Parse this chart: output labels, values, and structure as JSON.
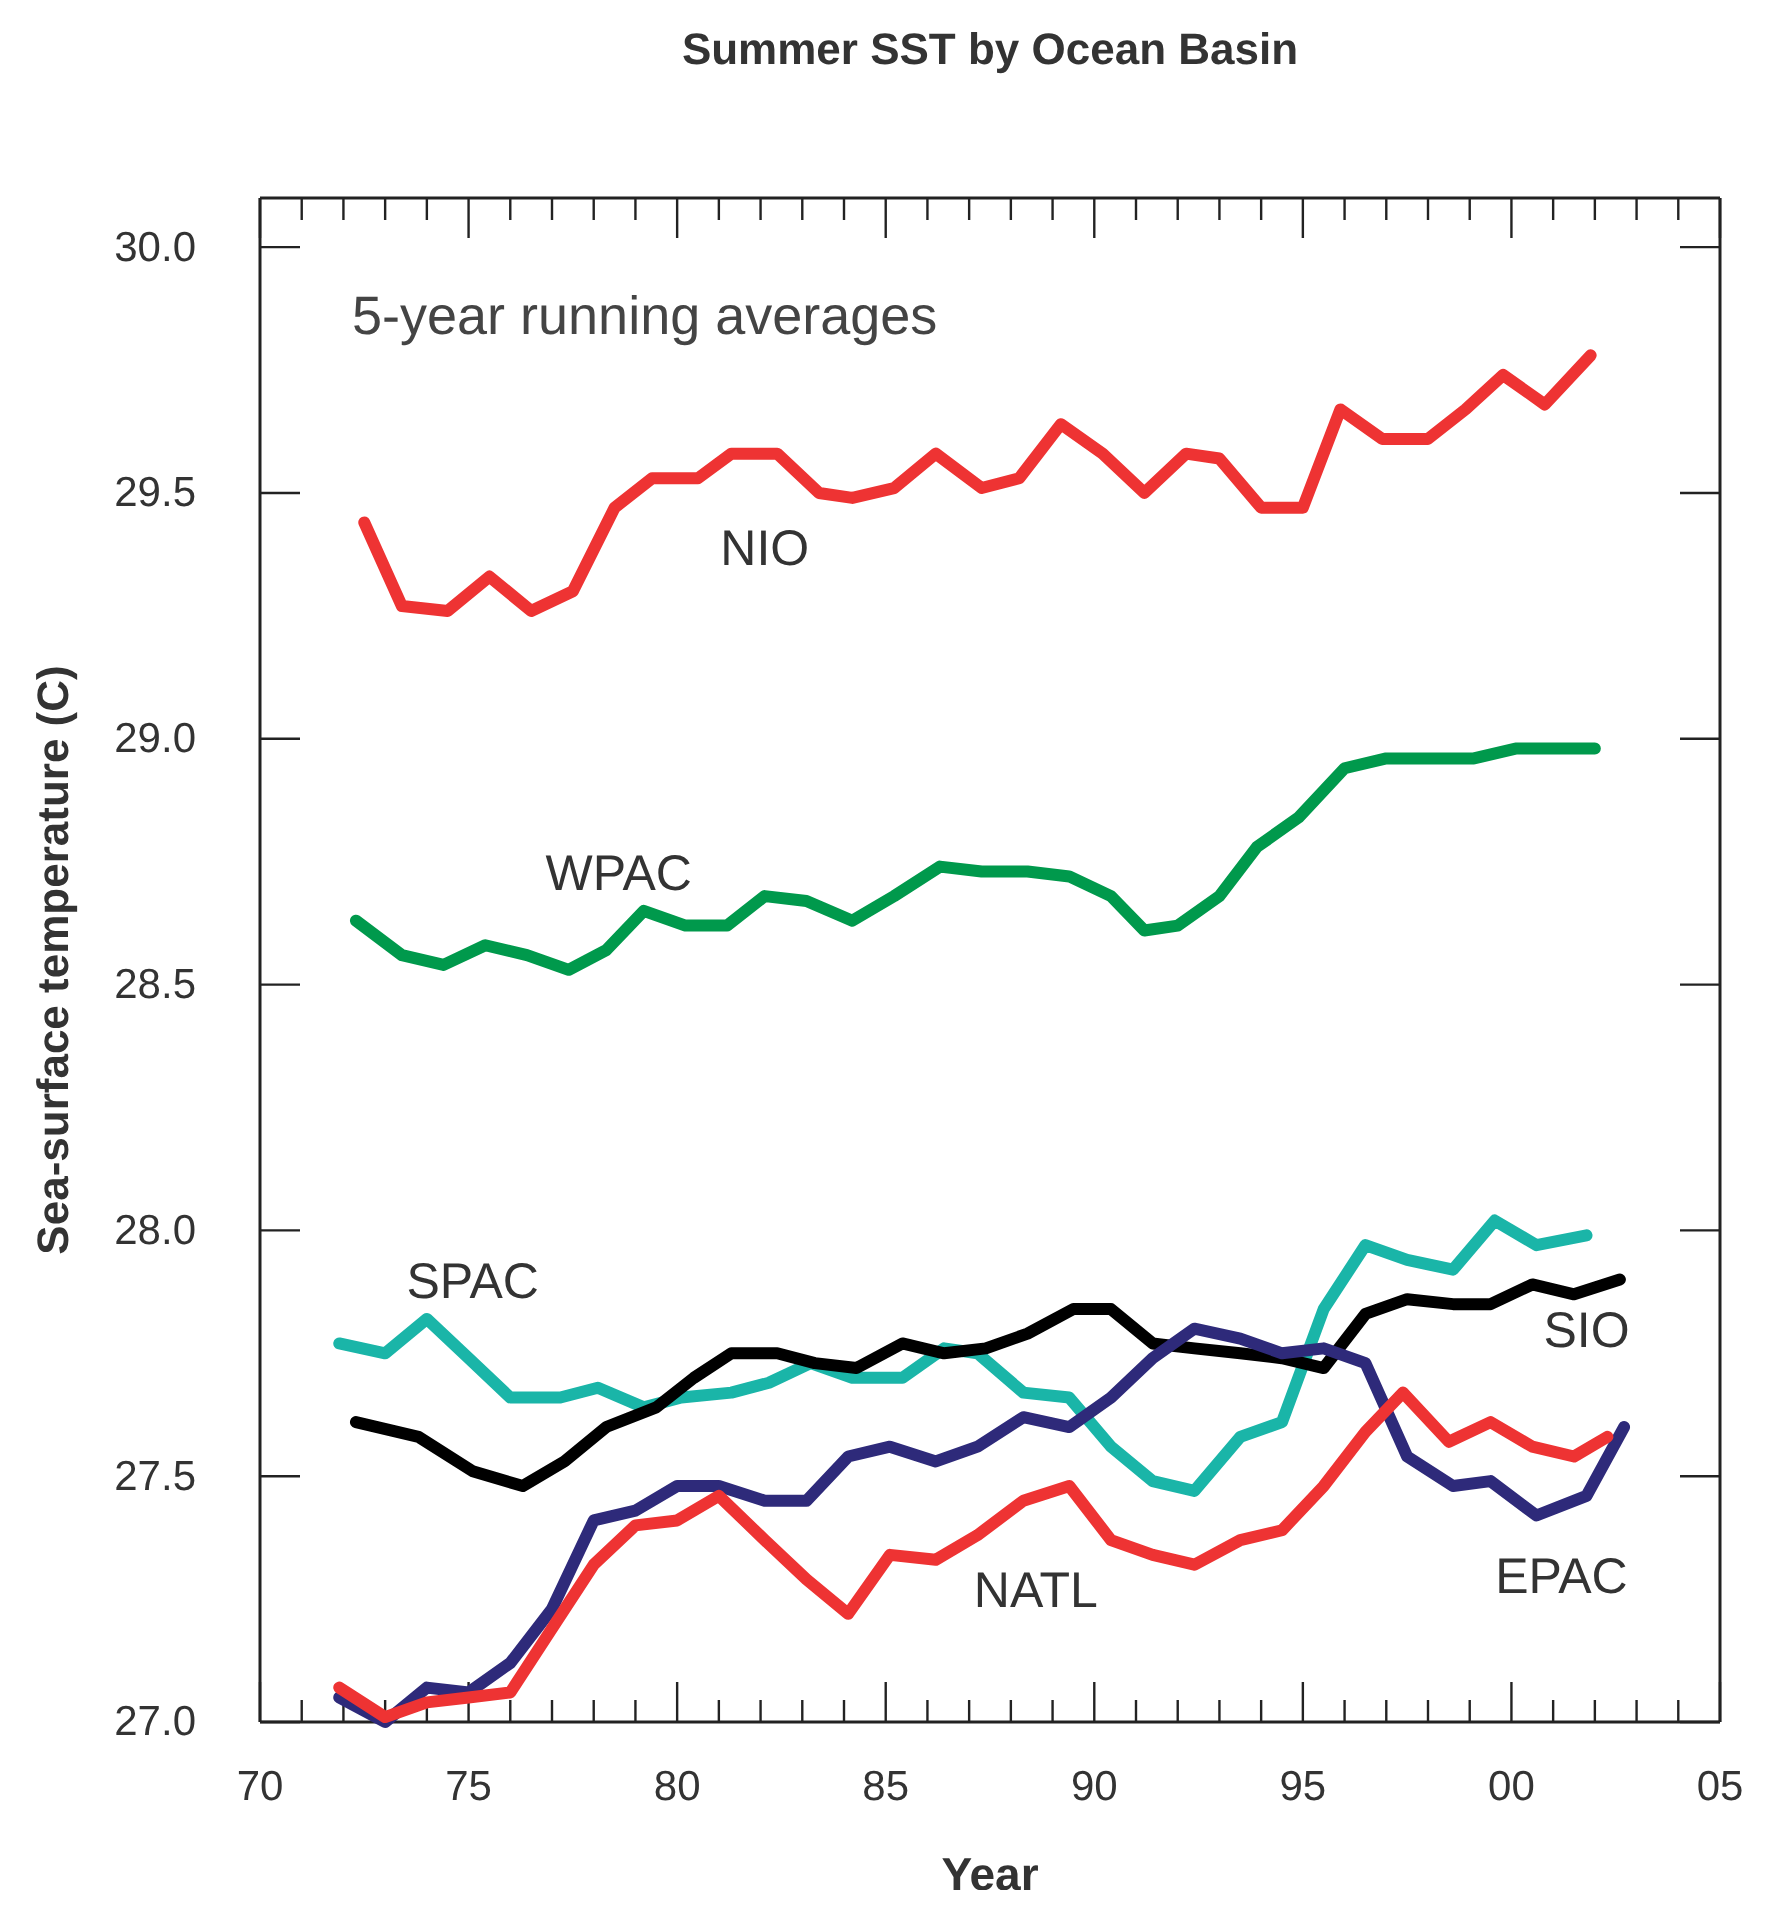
{
  "chart_data": {
    "type": "line",
    "title": "Summer SST by Ocean Basin",
    "xlabel": "Year",
    "ylabel": "Sea-surface temperature (C)",
    "annotations": [
      "5-year running averages"
    ],
    "xlim": [
      1970,
      2005
    ],
    "ylim": [
      27,
      30.1
    ],
    "xticks": [
      {
        "value": 1970,
        "label": "70"
      },
      {
        "value": 1971,
        "label": null
      },
      {
        "value": 1972,
        "label": null
      },
      {
        "value": 1973,
        "label": null
      },
      {
        "value": 1974,
        "label": null
      },
      {
        "value": 1975,
        "label": "75"
      },
      {
        "value": 1976,
        "label": null
      },
      {
        "value": 1977,
        "label": null
      },
      {
        "value": 1978,
        "label": null
      },
      {
        "value": 1979,
        "label": null
      },
      {
        "value": 1980,
        "label": "80"
      },
      {
        "value": 1981,
        "label": null
      },
      {
        "value": 1982,
        "label": null
      },
      {
        "value": 1983,
        "label": null
      },
      {
        "value": 1984,
        "label": null
      },
      {
        "value": 1985,
        "label": "85"
      },
      {
        "value": 1986,
        "label": null
      },
      {
        "value": 1987,
        "label": null
      },
      {
        "value": 1988,
        "label": null
      },
      {
        "value": 1989,
        "label": null
      },
      {
        "value": 1990,
        "label": "90"
      },
      {
        "value": 1991,
        "label": null
      },
      {
        "value": 1992,
        "label": null
      },
      {
        "value": 1993,
        "label": null
      },
      {
        "value": 1994,
        "label": null
      },
      {
        "value": 1995,
        "label": "95"
      },
      {
        "value": 1996,
        "label": null
      },
      {
        "value": 1997,
        "label": null
      },
      {
        "value": 1998,
        "label": null
      },
      {
        "value": 1999,
        "label": null
      },
      {
        "value": 2000,
        "label": "00"
      },
      {
        "value": 2001,
        "label": null
      },
      {
        "value": 2002,
        "label": null
      },
      {
        "value": 2003,
        "label": null
      },
      {
        "value": 2004,
        "label": null
      },
      {
        "value": 2005,
        "label": "05"
      }
    ],
    "yticks": [
      {
        "value": 27,
        "label": "27.0"
      },
      {
        "value": 27.5,
        "label": "27.5"
      },
      {
        "value": 28,
        "label": "28.0"
      },
      {
        "value": 28.5,
        "label": "28.5"
      },
      {
        "value": 29,
        "label": "29.0"
      },
      {
        "value": 29.5,
        "label": "29.5"
      },
      {
        "value": 30,
        "label": "30.0"
      }
    ],
    "grid": false,
    "legend": false,
    "marker": "none",
    "line_style": "solid",
    "series": [
      {
        "name": "NIO",
        "color": "#ee3333",
        "x": [
          1972.5,
          1973.4,
          1974.5,
          1975.5,
          1976.5,
          1977.5,
          1978.5,
          1979.4,
          1980.5,
          1981.3,
          1982.4,
          1983.4,
          1984.2,
          1985.2,
          1986.2,
          1987.3,
          1988.2,
          1989.2,
          1990.2,
          1991.2,
          1992.2,
          1993.0,
          1994.0,
          1995.0,
          1995.9,
          1996.9,
          1998.0,
          1998.9,
          1999.8,
          2000.8,
          2001.9
        ],
        "values": [
          29.44,
          29.27,
          29.26,
          29.33,
          29.26,
          29.3,
          29.47,
          29.53,
          29.53,
          29.58,
          29.58,
          29.5,
          29.49,
          29.51,
          29.58,
          29.51,
          29.53,
          29.64,
          29.58,
          29.5,
          29.58,
          29.57,
          29.47,
          29.47,
          29.67,
          29.61,
          29.61,
          29.67,
          29.74,
          29.68,
          29.78
        ]
      },
      {
        "name": "WPAC",
        "color": "#00994c",
        "x": [
          1972.3,
          1973.4,
          1974.4,
          1975.4,
          1976.4,
          1977.4,
          1978.3,
          1979.2,
          1980.2,
          1981.2,
          1982.1,
          1983.1,
          1984.2,
          1985.2,
          1986.3,
          1987.3,
          1988.4,
          1989.4,
          1990.4,
          1991.2,
          1992.0,
          1993.0,
          1993.9,
          1994.9,
          1996.0,
          1997.0,
          1998.0,
          1999.1,
          2000.1,
          2002.0
        ],
        "values": [
          28.63,
          28.56,
          28.54,
          28.58,
          28.56,
          28.53,
          28.57,
          28.65,
          28.62,
          28.62,
          28.68,
          28.67,
          28.63,
          28.68,
          28.74,
          28.73,
          28.73,
          28.72,
          28.68,
          28.61,
          28.62,
          28.68,
          28.78,
          28.84,
          28.94,
          28.96,
          28.96,
          28.96,
          28.98,
          28.98
        ]
      },
      {
        "name": "SPAC",
        "color": "#1ab5a8",
        "x": [
          1971.9,
          1973.0,
          1974.0,
          1975.0,
          1976.0,
          1977.2,
          1978.1,
          1979.2,
          1980.1,
          1981.3,
          1982.2,
          1983.2,
          1984.2,
          1985.4,
          1986.4,
          1987.2,
          1988.3,
          1989.4,
          1990.4,
          1991.4,
          1992.4,
          1993.5,
          1994.5,
          1995.5,
          1996.5,
          1997.5,
          1998.6,
          1999.6,
          2000.6,
          2001.8
        ],
        "values": [
          27.77,
          27.75,
          27.82,
          27.74,
          27.66,
          27.66,
          27.68,
          27.64,
          27.66,
          27.67,
          27.69,
          27.73,
          27.7,
          27.7,
          27.76,
          27.75,
          27.67,
          27.66,
          27.56,
          27.49,
          27.47,
          27.58,
          27.61,
          27.84,
          27.97,
          27.94,
          27.92,
          28.02,
          27.97,
          27.99
        ]
      },
      {
        "name": "SIO",
        "color": "#000000",
        "x": [
          1972.3,
          1973.8,
          1975.1,
          1976.3,
          1977.3,
          1978.3,
          1979.5,
          1980.4,
          1981.3,
          1982.4,
          1983.3,
          1984.3,
          1985.4,
          1986.4,
          1987.4,
          1988.4,
          1989.5,
          1990.4,
          1991.4,
          1992.4,
          1993.5,
          1994.5,
          1995.5,
          1996.5,
          1997.5,
          1998.6,
          1999.5,
          2000.5,
          2001.5,
          2002.6
        ],
        "values": [
          27.61,
          27.58,
          27.51,
          27.48,
          27.53,
          27.6,
          27.64,
          27.7,
          27.75,
          27.75,
          27.73,
          27.72,
          27.77,
          27.75,
          27.76,
          27.79,
          27.84,
          27.84,
          27.77,
          27.76,
          27.75,
          27.74,
          27.72,
          27.83,
          27.86,
          27.85,
          27.85,
          27.89,
          27.87,
          27.9
        ]
      },
      {
        "name": "EPAC",
        "color": "#2e2a7a",
        "x": [
          1971.9,
          1973.0,
          1974.0,
          1975.0,
          1976.0,
          1977.0,
          1978.0,
          1979.0,
          1980.0,
          1981.0,
          1982.1,
          1983.1,
          1984.1,
          1985.1,
          1986.2,
          1987.2,
          1988.3,
          1989.4,
          1990.4,
          1991.4,
          1992.4,
          1993.5,
          1994.5,
          1995.5,
          1996.5,
          1997.5,
          1998.6,
          1999.5,
          2000.6,
          2001.8,
          2002.7
        ],
        "values": [
          27.05,
          27.0,
          27.07,
          27.06,
          27.12,
          27.23,
          27.41,
          27.43,
          27.48,
          27.48,
          27.45,
          27.45,
          27.54,
          27.56,
          27.53,
          27.56,
          27.62,
          27.6,
          27.66,
          27.74,
          27.8,
          27.78,
          27.75,
          27.76,
          27.73,
          27.54,
          27.48,
          27.49,
          27.42,
          27.46,
          27.6
        ]
      },
      {
        "name": "NATL",
        "color": "#ee3333",
        "x": [
          1971.9,
          1973.0,
          1974.0,
          1975.0,
          1976.0,
          1977.0,
          1978.0,
          1979.0,
          1980.0,
          1981.0,
          1982.1,
          1983.1,
          1984.1,
          1985.1,
          1986.2,
          1987.2,
          1988.3,
          1989.4,
          1990.4,
          1991.4,
          1992.4,
          1993.5,
          1994.5,
          1995.5,
          1996.5,
          1997.4,
          1998.5,
          1999.5,
          2000.5,
          2001.5,
          2002.3
        ],
        "values": [
          27.07,
          27.01,
          27.04,
          27.05,
          27.06,
          27.19,
          27.32,
          27.4,
          27.41,
          27.46,
          27.37,
          27.29,
          27.22,
          27.34,
          27.33,
          27.38,
          27.45,
          27.48,
          27.37,
          27.34,
          27.32,
          27.37,
          27.39,
          27.48,
          27.59,
          27.67,
          27.57,
          27.61,
          27.56,
          27.54,
          27.58
        ]
      }
    ]
  }
}
